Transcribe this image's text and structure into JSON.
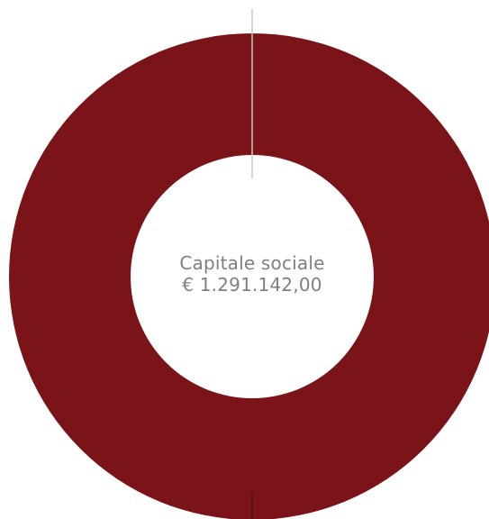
{
  "chart_data": {
    "type": "pie",
    "variant": "donut",
    "slices": [
      {
        "label": "",
        "value": 100,
        "color": "#7b1418"
      }
    ],
    "center_label": {
      "title": "Capitale sociale",
      "value": "€ 1.291.142,00"
    },
    "separator_color": "#c8c8c8",
    "hole_color": "#ffffff",
    "legend": "none"
  }
}
